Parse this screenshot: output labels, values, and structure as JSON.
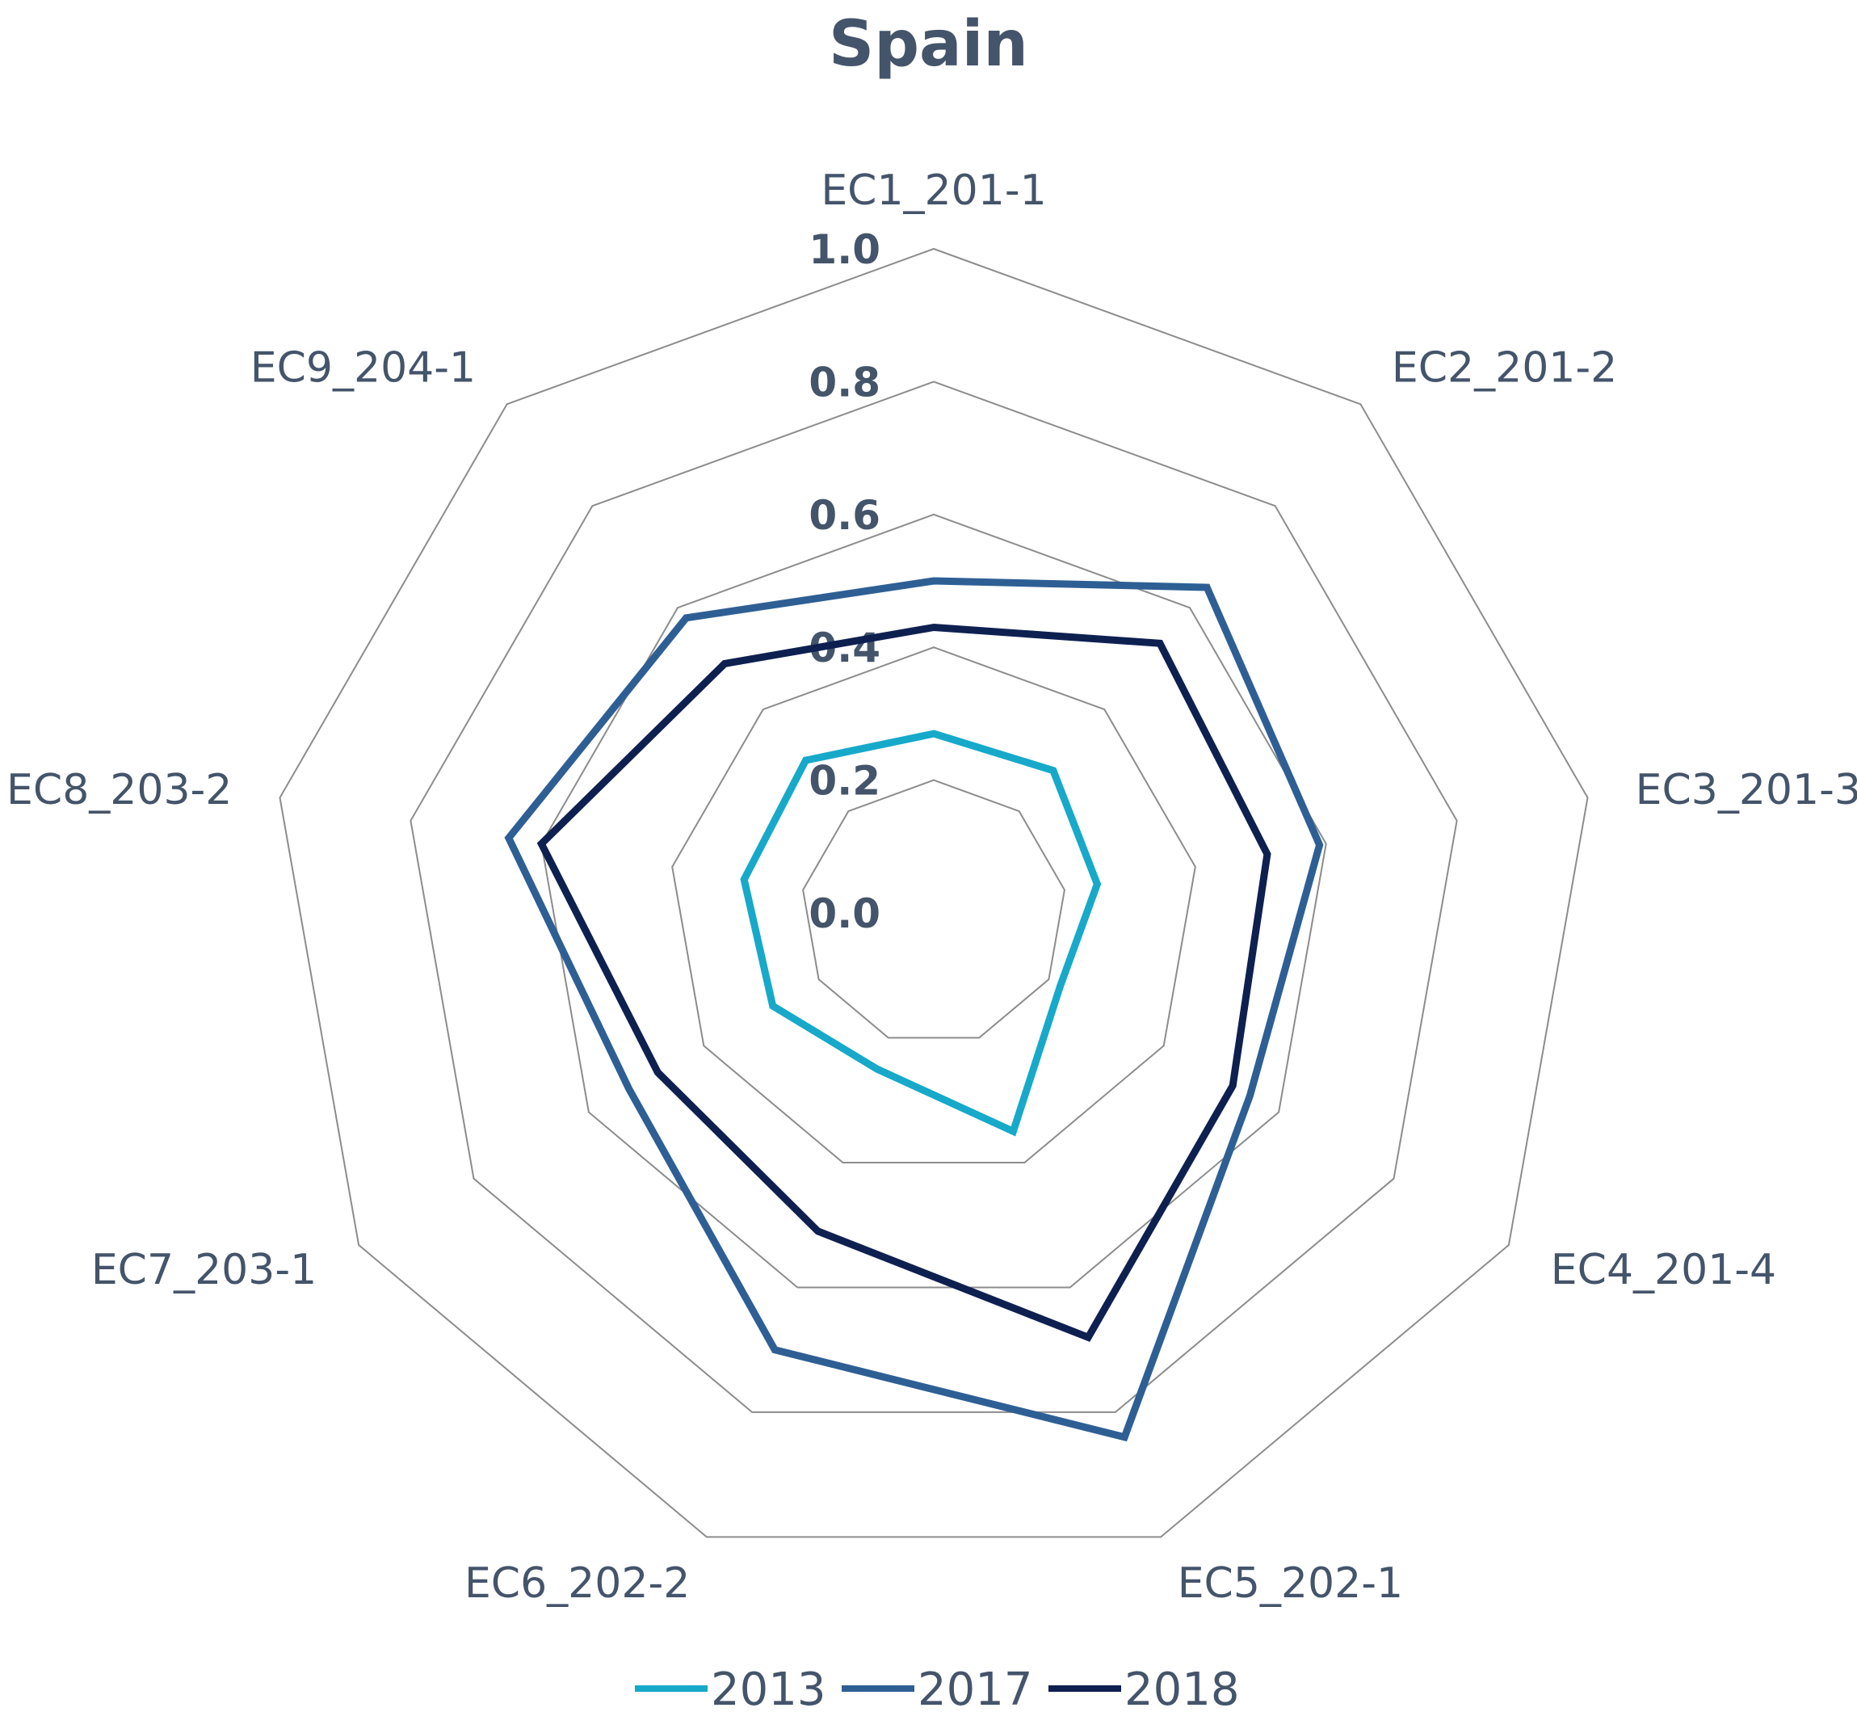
{
  "chart_data": {
    "type": "radar",
    "title": "Spain",
    "categories": [
      "EC1_201-1",
      "EC2_201-2",
      "EC3_201-3",
      "EC4_201-4",
      "EC5_202-1",
      "EC6_202-2",
      "EC7_203-1",
      "EC8_203-2",
      "EC9_204-1"
    ],
    "r_range": [
      0,
      1.0
    ],
    "r_ticks": [
      "0.0",
      "0.2",
      "0.4",
      "0.6",
      "0.8",
      "1.0"
    ],
    "r_tick_values": [
      0,
      0.2,
      0.4,
      0.6,
      0.8,
      1.0
    ],
    "grid": true,
    "legend_position": "bottom",
    "series": [
      {
        "name": "2013",
        "color": "#17a9c9",
        "values": [
          0.27,
          0.28,
          0.25,
          0.22,
          0.35,
          0.25,
          0.28,
          0.29,
          0.3
        ]
      },
      {
        "name": "2017",
        "color": "#2e5f94",
        "values": [
          0.5,
          0.64,
          0.59,
          0.55,
          0.84,
          0.7,
          0.53,
          0.65,
          0.58
        ]
      },
      {
        "name": "2018",
        "color": "#0e2050",
        "values": [
          0.43,
          0.53,
          0.51,
          0.52,
          0.68,
          0.51,
          0.48,
          0.6,
          0.49
        ]
      }
    ]
  }
}
